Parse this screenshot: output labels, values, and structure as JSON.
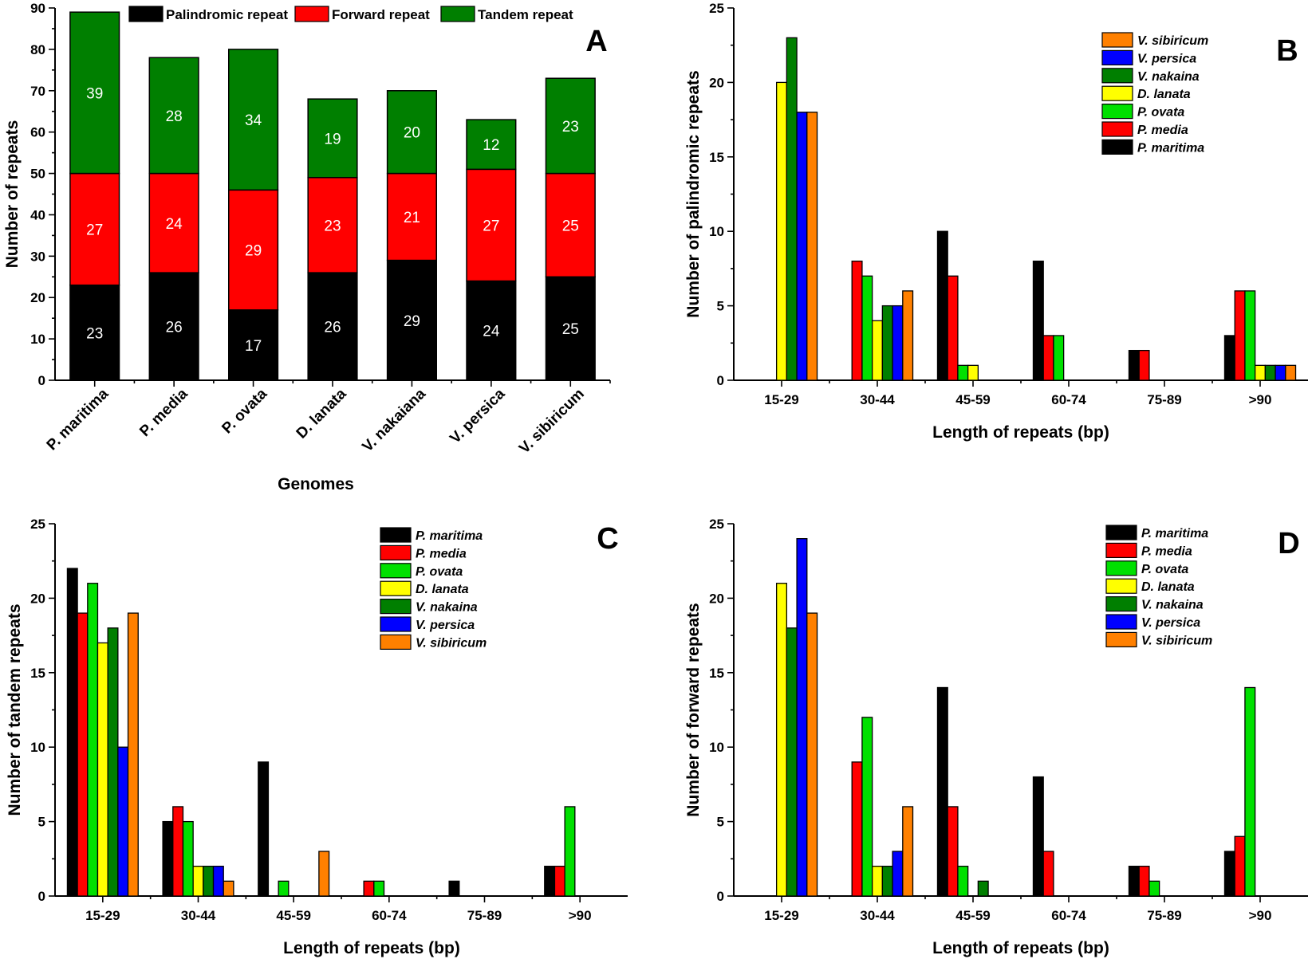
{
  "chart_data": [
    {
      "panel": "A",
      "type": "bar",
      "stacked": true,
      "xlabel": "Genomes",
      "ylabel": "Number of repeats",
      "ylim": [
        0,
        90
      ],
      "yticks": [
        0,
        10,
        20,
        30,
        40,
        50,
        60,
        70,
        80,
        90
      ],
      "categories": [
        "P. maritima",
        "P. media",
        "P. ovata",
        "D. lanata",
        "V. nakaiana",
        "V. persica",
        "V. sibiricum"
      ],
      "series": [
        {
          "name": "Palindromic repeat",
          "color": "#000000",
          "values": [
            23,
            26,
            17,
            26,
            29,
            24,
            25
          ]
        },
        {
          "name": "Forward repeat",
          "color": "#ff0000",
          "values": [
            27,
            24,
            29,
            23,
            21,
            27,
            25
          ]
        },
        {
          "name": "Tandem repeat",
          "color": "#007f00",
          "values": [
            39,
            28,
            34,
            19,
            20,
            12,
            23
          ]
        }
      ],
      "legend_position": "top"
    },
    {
      "panel": "B",
      "type": "bar",
      "xlabel": "Length of repeats (bp)",
      "ylabel": "Number of palindromic repeats",
      "ylim": [
        0,
        25
      ],
      "yticks": [
        0,
        5,
        10,
        15,
        20,
        25
      ],
      "categories": [
        "15-29",
        "30-44",
        "45-59",
        "60-74",
        "75-89",
        ">90"
      ],
      "series": [
        {
          "name": "P.  maritima",
          "color": "#000000",
          "values": [
            0,
            0,
            10,
            8,
            2,
            3
          ]
        },
        {
          "name": "P. media",
          "color": "#ff0000",
          "values": [
            0,
            8,
            7,
            3,
            2,
            6
          ]
        },
        {
          "name": "P. ovata",
          "color": "#00e000",
          "values": [
            0,
            7,
            1,
            3,
            0,
            6
          ]
        },
        {
          "name": "D. lanata",
          "color": "#ffff00",
          "values": [
            20,
            4,
            1,
            0,
            0,
            1
          ]
        },
        {
          "name": "V. nakaina",
          "color": "#007f00",
          "values": [
            23,
            5,
            0,
            0,
            0,
            1
          ]
        },
        {
          "name": "V. persica",
          "color": "#0000ff",
          "values": [
            18,
            5,
            0,
            0,
            0,
            1
          ]
        },
        {
          "name": "V. sibiricum",
          "color": "#ff8000",
          "values": [
            18,
            6,
            0,
            0,
            0,
            1
          ]
        }
      ],
      "legend_order": [
        6,
        5,
        4,
        3,
        2,
        1,
        0
      ],
      "legend_position": "top-right"
    },
    {
      "panel": "C",
      "type": "bar",
      "xlabel": "Length of repeats (bp)",
      "ylabel": "Number of tandem repeats",
      "ylim": [
        0,
        25
      ],
      "yticks": [
        0,
        5,
        10,
        15,
        20,
        25
      ],
      "categories": [
        "15-29",
        "30-44",
        "45-59",
        "60-74",
        "75-89",
        ">90"
      ],
      "series": [
        {
          "name": "P.  maritima",
          "color": "#000000",
          "values": [
            22,
            5,
            9,
            0,
            1,
            2
          ]
        },
        {
          "name": "P. media",
          "color": "#ff0000",
          "values": [
            19,
            6,
            0,
            1,
            0,
            2
          ]
        },
        {
          "name": "P. ovata",
          "color": "#00e000",
          "values": [
            21,
            5,
            1,
            1,
            0,
            6
          ]
        },
        {
          "name": "D. lanata",
          "color": "#ffff00",
          "values": [
            17,
            2,
            0,
            0,
            0,
            0
          ]
        },
        {
          "name": "V. nakaina",
          "color": "#007f00",
          "values": [
            18,
            2,
            0,
            0,
            0,
            0
          ]
        },
        {
          "name": "V. persica",
          "color": "#0000ff",
          "values": [
            10,
            2,
            0,
            0,
            0,
            0
          ]
        },
        {
          "name": "V. sibiricum",
          "color": "#ff8000",
          "values": [
            19,
            1,
            3,
            0,
            0,
            0
          ]
        }
      ],
      "legend_order": [
        0,
        1,
        2,
        3,
        4,
        5,
        6
      ],
      "legend_position": "top-right"
    },
    {
      "panel": "D",
      "type": "bar",
      "xlabel": "Length of repeats (bp)",
      "ylabel": "Number of forward repeats",
      "ylim": [
        0,
        25
      ],
      "yticks": [
        0,
        5,
        10,
        15,
        20,
        25
      ],
      "categories": [
        "15-29",
        "30-44",
        "45-59",
        "60-74",
        "75-89",
        ">90"
      ],
      "series": [
        {
          "name": "P.  maritima",
          "color": "#000000",
          "values": [
            0,
            0,
            14,
            8,
            2,
            3
          ]
        },
        {
          "name": "P. media",
          "color": "#ff0000",
          "values": [
            0,
            9,
            6,
            3,
            2,
            4
          ]
        },
        {
          "name": "P. ovata",
          "color": "#00e000",
          "values": [
            0,
            12,
            2,
            0,
            1,
            14
          ]
        },
        {
          "name": "D. lanata",
          "color": "#ffff00",
          "values": [
            21,
            2,
            0,
            0,
            0,
            0
          ]
        },
        {
          "name": "V. nakaina",
          "color": "#007f00",
          "values": [
            18,
            2,
            1,
            0,
            0,
            0
          ]
        },
        {
          "name": "V. persica",
          "color": "#0000ff",
          "values": [
            24,
            3,
            0,
            0,
            0,
            0
          ]
        },
        {
          "name": "V. sibiricum",
          "color": "#ff8000",
          "values": [
            19,
            6,
            0,
            0,
            0,
            0
          ]
        }
      ],
      "legend_order": [
        0,
        1,
        2,
        3,
        4,
        5,
        6
      ],
      "legend_position": "top-right"
    }
  ]
}
